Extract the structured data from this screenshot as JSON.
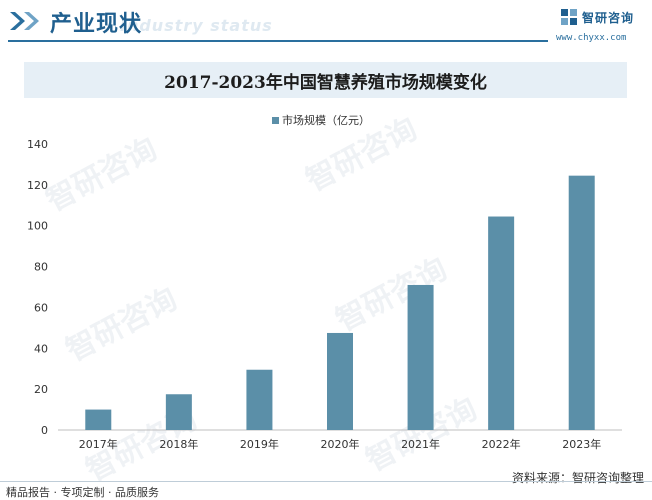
{
  "header": {
    "title": "产业现状",
    "ghost": "Industry status",
    "logo_name": "智研咨询",
    "logo_url": "www.chyxx.com"
  },
  "banner": {
    "title": "2017-2023年中国智慧养殖市场规模变化"
  },
  "watermark": {
    "text": "智研咨询"
  },
  "footer": {
    "left": "精品报告 · 专项定制 · 品质服务",
    "right": "资料来源：智研咨询整理"
  },
  "colors": {
    "bar": "#5b8fa8",
    "accent": "#1f5f8f",
    "banner_bg": "#e6eff6"
  },
  "chart_data": {
    "type": "bar",
    "title": "2017-2023年中国智慧养殖市场规模变化",
    "legend": [
      "市场规模（亿元）"
    ],
    "legend_position": "top-center",
    "categories": [
      "2017年",
      "2018年",
      "2019年",
      "2020年",
      "2021年",
      "2022年",
      "2023年"
    ],
    "series": [
      {
        "name": "市场规模（亿元）",
        "values": [
          10,
          17.5,
          29.5,
          47.5,
          71,
          104.5,
          124.5
        ]
      }
    ],
    "ylim": [
      0,
      140
    ],
    "yticks": [
      0,
      20,
      40,
      60,
      80,
      100,
      120,
      140
    ],
    "grid": false,
    "xlabel": "",
    "ylabel": ""
  }
}
